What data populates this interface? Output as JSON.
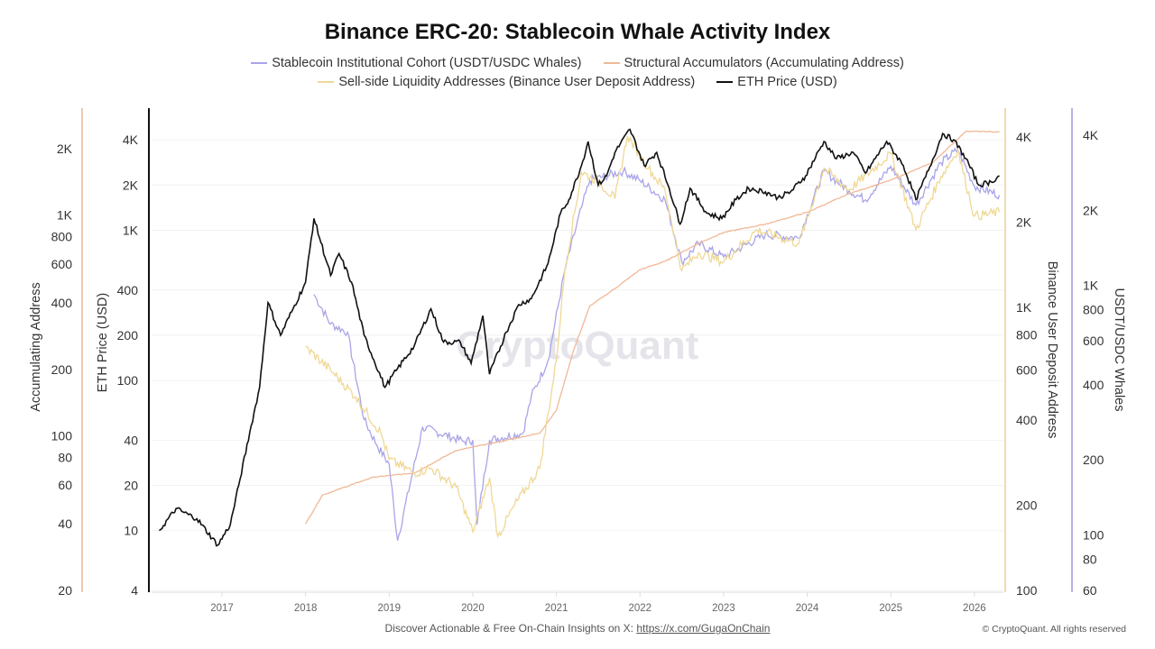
{
  "chart_data": {
    "type": "line",
    "title": "Binance ERC-20: Stablecoin Whale Activity Index",
    "x_ticks": [
      "2017",
      "2018",
      "2019",
      "2020",
      "2021",
      "2022",
      "2023",
      "2024",
      "2025",
      "2026"
    ],
    "xlim": [
      2016.2,
      2026.35
    ],
    "watermark": "CryptoQuant",
    "grid": true,
    "legend_placement": "top",
    "axes": {
      "accum": {
        "label": "Accumulating Address",
        "scale": "log",
        "range": [
          20,
          3050
        ],
        "ticks": [
          20,
          40,
          60,
          80,
          100,
          200,
          400,
          600,
          800,
          1000,
          2000
        ],
        "tick_labels": [
          "20",
          "40",
          "60",
          "80",
          "100",
          "200",
          "400",
          "600",
          "800",
          "1K",
          "2K"
        ],
        "color": "#ecc9b0",
        "side": "left-outer"
      },
      "eth": {
        "label": "ETH Price (USD)",
        "scale": "log",
        "range": [
          4,
          6500
        ],
        "ticks": [
          4,
          10,
          20,
          40,
          100,
          200,
          400,
          1000,
          2000,
          4000
        ],
        "tick_labels": [
          "4",
          "10",
          "20",
          "40",
          "100",
          "200",
          "400",
          "1K",
          "2K",
          "4K"
        ],
        "color": "#111111",
        "side": "left-inner"
      },
      "deposit": {
        "label": "Binance User Deposit Address",
        "scale": "log",
        "range": [
          100,
          5060
        ],
        "ticks": [
          100,
          200,
          400,
          600,
          800,
          1000,
          2000,
          4000
        ],
        "tick_labels": [
          "100",
          "200",
          "400",
          "600",
          "800",
          "1K",
          "2K",
          "4K"
        ],
        "color": "#eedcae",
        "side": "right-inner"
      },
      "whales": {
        "label": "USDT/USDC Whales",
        "scale": "log",
        "range": [
          60,
          5130
        ],
        "ticks": [
          60,
          80,
          100,
          200,
          400,
          600,
          800,
          1000,
          2000,
          4000
        ],
        "tick_labels": [
          "60",
          "80",
          "100",
          "200",
          "400",
          "600",
          "800",
          "1K",
          "2K",
          "4K"
        ],
        "color": "#b6b2e6",
        "side": "right-outer"
      }
    },
    "series": [
      {
        "name": "Stablecoin Institutional Cohort (USDT/USDC Whales)",
        "axis": "whales",
        "color": "#a9a4e8",
        "x": [
          2018.1,
          2018.3,
          2018.5,
          2018.7,
          2018.85,
          2019.0,
          2019.1,
          2019.4,
          2019.9,
          2020.0,
          2020.05,
          2020.2,
          2020.6,
          2020.7,
          2020.9,
          2021.1,
          2021.3,
          2021.4,
          2021.8,
          2022.0,
          2022.3,
          2022.5,
          2022.7,
          2023.0,
          2023.5,
          2023.9,
          2024.2,
          2024.5,
          2024.7,
          2025.0,
          2025.3,
          2025.6,
          2025.8,
          2026.0,
          2026.3
        ],
        "y": [
          920,
          700,
          650,
          290,
          230,
          192,
          95,
          270,
          237,
          240,
          110,
          240,
          256,
          360,
          500,
          1150,
          2050,
          2630,
          2870,
          2630,
          2200,
          1240,
          1470,
          1300,
          1600,
          1550,
          2870,
          2400,
          2200,
          3000,
          2100,
          3100,
          3500,
          2500,
          2300
        ]
      },
      {
        "name": "Structural Accumulators (Accumulating Address)",
        "axis": "accum",
        "color": "#f0b896",
        "x": [
          2018.0,
          2018.2,
          2018.8,
          2019.3,
          2019.8,
          2020.3,
          2020.8,
          2021.0,
          2021.2,
          2021.4,
          2021.7,
          2022.0,
          2022.3,
          2022.7,
          2023.0,
          2023.5,
          2024.0,
          2024.5,
          2025.0,
          2025.5,
          2025.9,
          2026.3
        ],
        "y": [
          40,
          54,
          65,
          68,
          86,
          94,
          103,
          131,
          241,
          388,
          465,
          566,
          618,
          745,
          835,
          910,
          1030,
          1250,
          1440,
          1730,
          2400,
          2380
        ]
      },
      {
        "name": "Sell-side Liquidity Addresses (Binance User Deposit Address)",
        "axis": "deposit",
        "color": "#efd896",
        "x": [
          2018.0,
          2018.3,
          2018.6,
          2018.9,
          2019.0,
          2019.3,
          2019.5,
          2019.8,
          2020.0,
          2020.2,
          2020.3,
          2020.5,
          2020.8,
          2021.0,
          2021.1,
          2021.3,
          2021.5,
          2021.7,
          2021.85,
          2022.1,
          2022.3,
          2022.5,
          2022.7,
          2023.0,
          2023.4,
          2023.9,
          2024.2,
          2024.5,
          2025.0,
          2025.3,
          2025.6,
          2025.8,
          2026.0,
          2026.3
        ],
        "y": [
          724,
          600,
          483,
          360,
          290,
          260,
          270,
          232,
          161,
          250,
          155,
          200,
          270,
          650,
          1350,
          3000,
          2800,
          2420,
          4040,
          3100,
          2600,
          1350,
          1560,
          1450,
          1880,
          1680,
          3100,
          2600,
          3500,
          1880,
          2900,
          3600,
          2100,
          2170
        ]
      },
      {
        "name": "ETH Price (USD)",
        "axis": "eth",
        "color": "#111111",
        "x": [
          2016.25,
          2016.45,
          2016.7,
          2016.95,
          2017.1,
          2017.2,
          2017.35,
          2017.45,
          2017.55,
          2017.7,
          2017.85,
          2018.0,
          2018.1,
          2018.3,
          2018.4,
          2018.55,
          2018.7,
          2018.95,
          2019.1,
          2019.3,
          2019.5,
          2019.65,
          2019.85,
          2019.98,
          2020.12,
          2020.2,
          2020.4,
          2020.55,
          2020.7,
          2020.9,
          2021.05,
          2021.15,
          2021.3,
          2021.38,
          2021.5,
          2021.6,
          2021.7,
          2021.88,
          2022.05,
          2022.2,
          2022.35,
          2022.48,
          2022.6,
          2022.8,
          2022.98,
          2023.15,
          2023.3,
          2023.5,
          2023.65,
          2023.8,
          2023.98,
          2024.2,
          2024.35,
          2024.55,
          2024.7,
          2024.95,
          2025.15,
          2025.3,
          2025.45,
          2025.62,
          2025.75,
          2025.9,
          2026.05,
          2026.2,
          2026.3
        ],
        "y": [
          10,
          14,
          12,
          8,
          11,
          20,
          50,
          90,
          330,
          200,
          300,
          450,
          1200,
          500,
          700,
          450,
          200,
          90,
          120,
          170,
          300,
          180,
          180,
          130,
          270,
          110,
          210,
          320,
          350,
          600,
          1300,
          1600,
          2700,
          3900,
          2000,
          2300,
          3300,
          4700,
          2700,
          3300,
          1900,
          1100,
          1900,
          1300,
          1200,
          1600,
          1900,
          1800,
          1650,
          1800,
          2300,
          3900,
          3000,
          3300,
          2400,
          3900,
          2700,
          1600,
          2500,
          4400,
          4000,
          3000,
          2000,
          2100,
          2300
        ]
      }
    ]
  },
  "legend": {
    "items": [
      {
        "label": "Stablecoin Institutional Cohort (USDT/USDC Whales)",
        "color": "#a9a4e8"
      },
      {
        "label": "Structural Accumulators (Accumulating Address)",
        "color": "#f0b896"
      },
      {
        "label": "Sell-side Liquidity Addresses (Binance User Deposit Address)",
        "color": "#efd896"
      },
      {
        "label": "ETH Price (USD)",
        "color": "#111111"
      }
    ]
  },
  "footer": {
    "text": "Discover Actionable & Free On-Chain Insights on X: ",
    "link": "https://x.com/GugaOnChain",
    "copyright": "© CryptoQuant. All rights reserved"
  }
}
